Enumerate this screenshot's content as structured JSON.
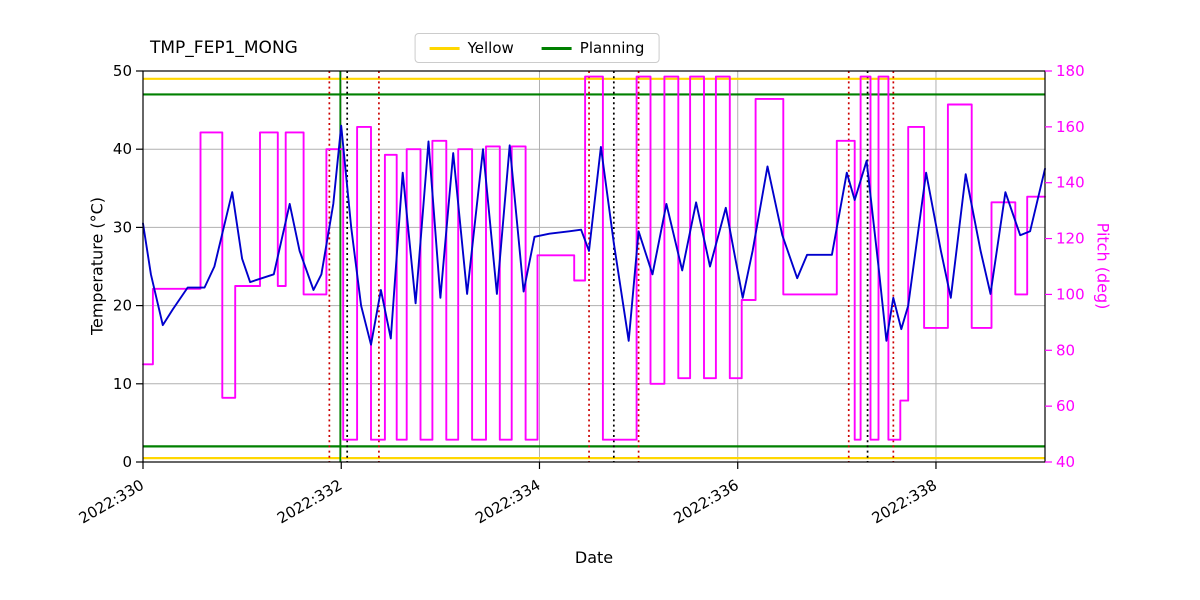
{
  "chart_data": {
    "type": "line",
    "title": "TMP_FEP1_MONG",
    "xlabel": "Date",
    "ylabel_left": "Temperature (°C)",
    "ylabel_right": "Pitch (deg)",
    "xlim": [
      330,
      339.1
    ],
    "ylim_left": [
      0,
      50
    ],
    "ylim_right": [
      40,
      180
    ],
    "x_ticks": [
      330,
      332,
      334,
      336,
      338
    ],
    "x_tick_labels": [
      "2022:330",
      "2022:332",
      "2022:334",
      "2022:336",
      "2022:338"
    ],
    "y_ticks_left": [
      0,
      10,
      20,
      30,
      40,
      50
    ],
    "y_ticks_right": [
      40,
      60,
      80,
      100,
      120,
      140,
      160,
      180
    ],
    "grid": true,
    "grid_color": "#b0b0b0",
    "legend_position": "top-center",
    "legend": [
      {
        "label": "Yellow",
        "color": "#ffd700"
      },
      {
        "label": "Planning",
        "color": "#008000"
      }
    ],
    "hlines": [
      {
        "y": 49,
        "color": "#ffd700",
        "width": 2.2
      },
      {
        "y": 0.5,
        "color": "#ffd700",
        "width": 2.2
      },
      {
        "y": 47,
        "color": "#008000",
        "width": 2.2
      },
      {
        "y": 2,
        "color": "#008000",
        "width": 2.2
      }
    ],
    "vlines": [
      {
        "x": 331.88,
        "color": "#cc0000",
        "style": "dotted"
      },
      {
        "x": 331.99,
        "color": "#008000",
        "style": "solid"
      },
      {
        "x": 332.06,
        "color": "#000000",
        "style": "dotted"
      },
      {
        "x": 332.38,
        "color": "#cc0000",
        "style": "dotted"
      },
      {
        "x": 334.5,
        "color": "#cc0000",
        "style": "dotted"
      },
      {
        "x": 334.75,
        "color": "#000000",
        "style": "dotted"
      },
      {
        "x": 335.0,
        "color": "#cc0000",
        "style": "dotted"
      },
      {
        "x": 337.12,
        "color": "#cc0000",
        "style": "dotted"
      },
      {
        "x": 337.31,
        "color": "#000000",
        "style": "dotted"
      },
      {
        "x": 337.57,
        "color": "#cc0000",
        "style": "dotted"
      }
    ],
    "series": [
      {
        "name": "pitch",
        "color": "#ff00ff",
        "axis": "right",
        "line_type": "step",
        "points": [
          [
            330.0,
            75
          ],
          [
            330.1,
            102
          ],
          [
            330.58,
            158
          ],
          [
            330.8,
            63
          ],
          [
            330.93,
            103
          ],
          [
            331.18,
            158
          ],
          [
            331.36,
            103
          ],
          [
            331.44,
            158
          ],
          [
            331.62,
            100
          ],
          [
            331.85,
            152
          ],
          [
            332.02,
            48
          ],
          [
            332.16,
            160
          ],
          [
            332.3,
            48
          ],
          [
            332.44,
            150
          ],
          [
            332.56,
            48
          ],
          [
            332.66,
            152
          ],
          [
            332.8,
            48
          ],
          [
            332.92,
            155
          ],
          [
            333.06,
            48
          ],
          [
            333.18,
            152
          ],
          [
            333.32,
            48
          ],
          [
            333.46,
            153
          ],
          [
            333.6,
            48
          ],
          [
            333.72,
            153
          ],
          [
            333.86,
            48
          ],
          [
            333.98,
            114
          ],
          [
            334.35,
            105
          ],
          [
            334.46,
            178
          ],
          [
            334.64,
            48
          ],
          [
            334.98,
            178
          ],
          [
            335.12,
            68
          ],
          [
            335.26,
            178
          ],
          [
            335.4,
            70
          ],
          [
            335.52,
            178
          ],
          [
            335.66,
            70
          ],
          [
            335.78,
            178
          ],
          [
            335.92,
            70
          ],
          [
            336.04,
            98
          ],
          [
            336.18,
            170
          ],
          [
            336.46,
            100
          ],
          [
            337.0,
            155
          ],
          [
            337.18,
            48
          ],
          [
            337.24,
            178
          ],
          [
            337.34,
            48
          ],
          [
            337.42,
            178
          ],
          [
            337.52,
            48
          ],
          [
            337.64,
            62
          ],
          [
            337.72,
            160
          ],
          [
            337.88,
            88
          ],
          [
            338.12,
            168
          ],
          [
            338.36,
            88
          ],
          [
            338.56,
            133
          ],
          [
            338.8,
            100
          ],
          [
            338.92,
            135
          ],
          [
            339.1,
            135
          ]
        ]
      },
      {
        "name": "temperature",
        "color": "#0000cd",
        "axis": "left",
        "line_type": "line",
        "points": [
          [
            330.0,
            30.5
          ],
          [
            330.08,
            24
          ],
          [
            330.2,
            17.5
          ],
          [
            330.3,
            19.5
          ],
          [
            330.45,
            22.3
          ],
          [
            330.62,
            22.3
          ],
          [
            330.72,
            25
          ],
          [
            330.9,
            34.5
          ],
          [
            331.0,
            26
          ],
          [
            331.08,
            23
          ],
          [
            331.2,
            23.5
          ],
          [
            331.32,
            24
          ],
          [
            331.48,
            33
          ],
          [
            331.58,
            27
          ],
          [
            331.72,
            22
          ],
          [
            331.8,
            24
          ],
          [
            331.92,
            33
          ],
          [
            332.0,
            43
          ],
          [
            332.1,
            30
          ],
          [
            332.2,
            20
          ],
          [
            332.3,
            15
          ],
          [
            332.4,
            22
          ],
          [
            332.5,
            15.8
          ],
          [
            332.62,
            37
          ],
          [
            332.75,
            20.3
          ],
          [
            332.88,
            41
          ],
          [
            333.0,
            21
          ],
          [
            333.13,
            39.5
          ],
          [
            333.27,
            21.5
          ],
          [
            333.43,
            40
          ],
          [
            333.57,
            21.5
          ],
          [
            333.7,
            40.5
          ],
          [
            333.84,
            21.8
          ],
          [
            333.95,
            28.8
          ],
          [
            334.1,
            29.2
          ],
          [
            334.3,
            29.5
          ],
          [
            334.42,
            29.7
          ],
          [
            334.5,
            27
          ],
          [
            334.62,
            40.3
          ],
          [
            334.75,
            28
          ],
          [
            334.9,
            15.5
          ],
          [
            335.0,
            29.5
          ],
          [
            335.14,
            24
          ],
          [
            335.28,
            33
          ],
          [
            335.44,
            24.5
          ],
          [
            335.58,
            33.2
          ],
          [
            335.72,
            25
          ],
          [
            335.88,
            32.5
          ],
          [
            336.05,
            21
          ],
          [
            336.15,
            27
          ],
          [
            336.3,
            37.8
          ],
          [
            336.45,
            29
          ],
          [
            336.6,
            23.5
          ],
          [
            336.7,
            26.5
          ],
          [
            336.95,
            26.5
          ],
          [
            337.1,
            37
          ],
          [
            337.18,
            33.5
          ],
          [
            337.3,
            38.5
          ],
          [
            337.42,
            25
          ],
          [
            337.5,
            15.5
          ],
          [
            337.57,
            21
          ],
          [
            337.65,
            17
          ],
          [
            337.72,
            20
          ],
          [
            337.9,
            37
          ],
          [
            338.05,
            27
          ],
          [
            338.15,
            21
          ],
          [
            338.3,
            36.8
          ],
          [
            338.45,
            27
          ],
          [
            338.55,
            21.5
          ],
          [
            338.7,
            34.5
          ],
          [
            338.85,
            29
          ],
          [
            338.95,
            29.5
          ],
          [
            339.1,
            37.5
          ]
        ]
      }
    ]
  }
}
